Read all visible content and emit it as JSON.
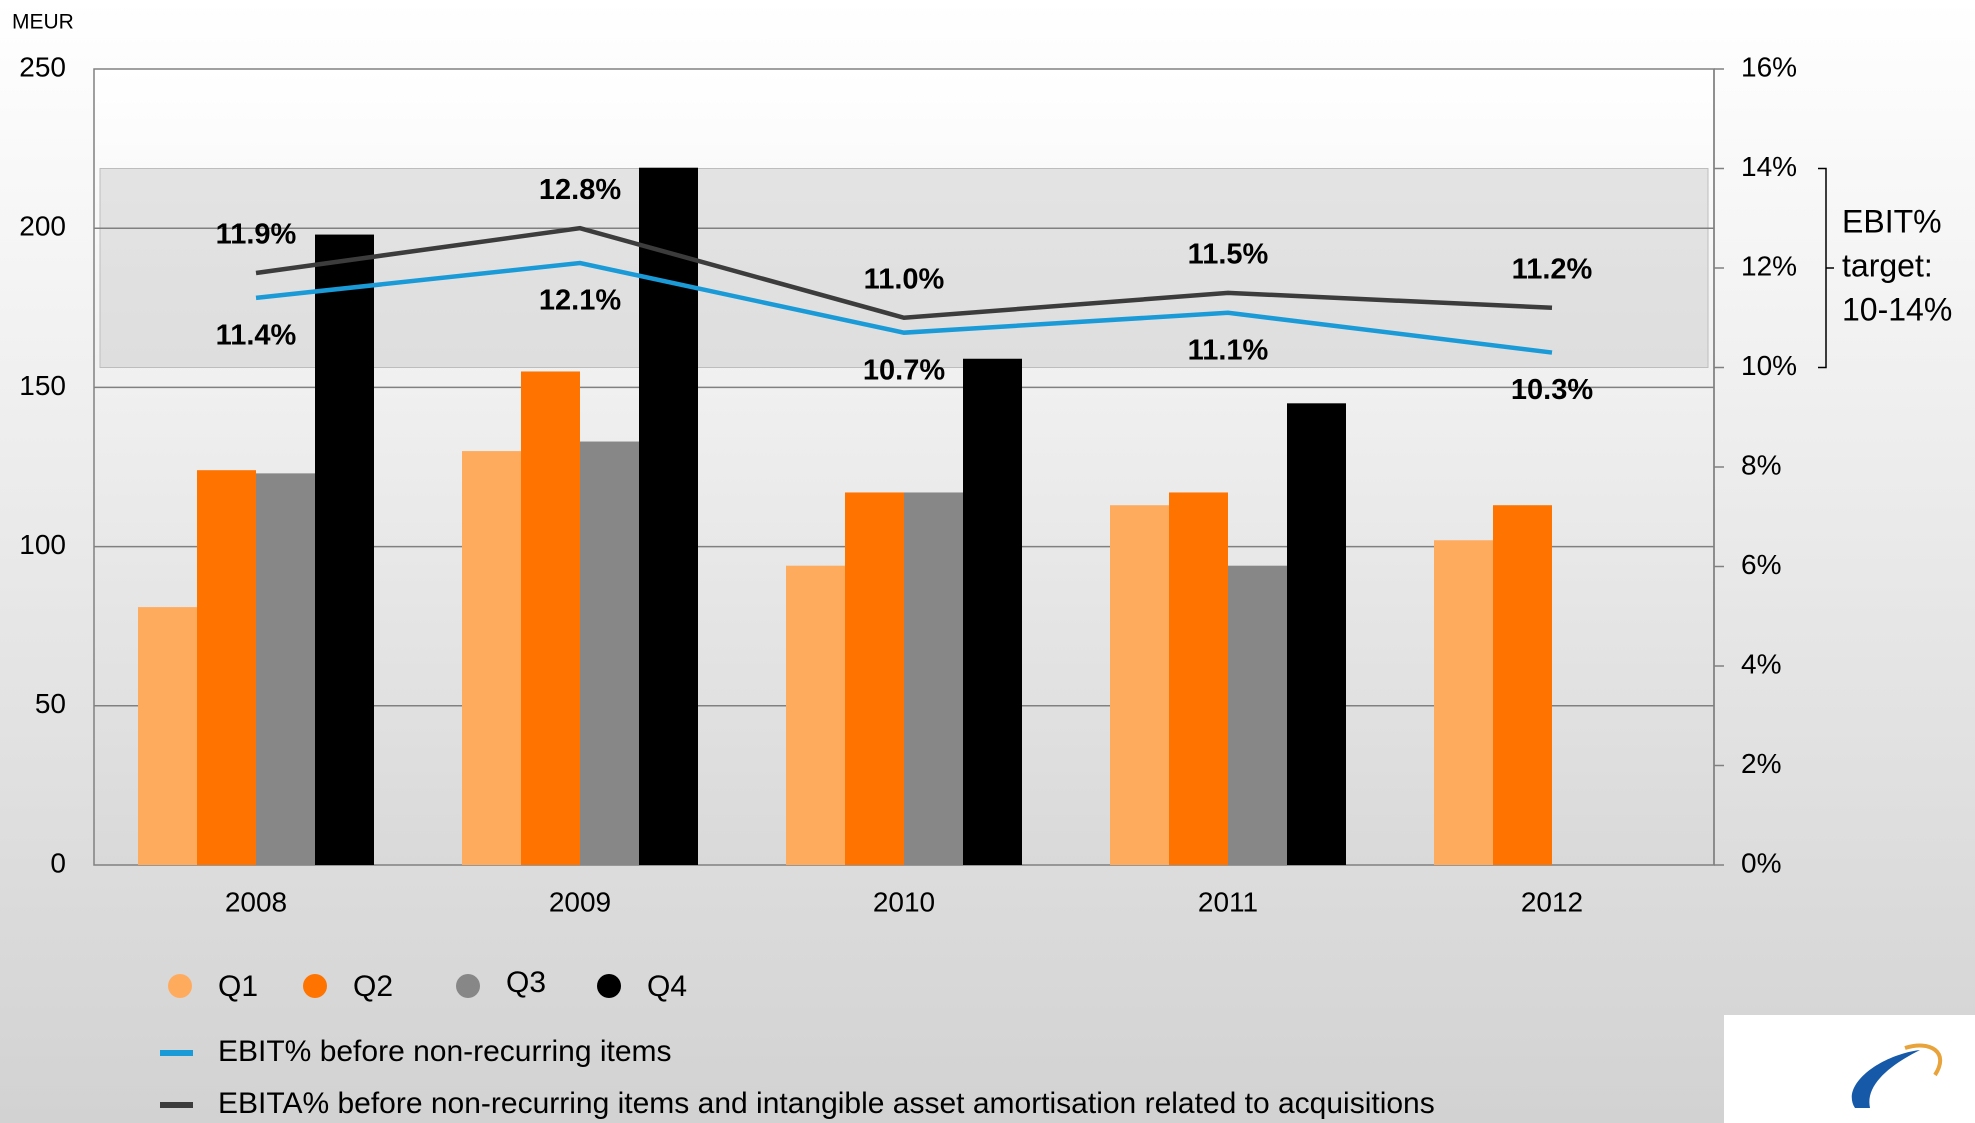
{
  "chart_data": {
    "type": "bar",
    "y_label": "MEUR",
    "categories": [
      "2008",
      "2009",
      "2010",
      "2011",
      "2012"
    ],
    "series": [
      {
        "name": "Q1",
        "color": "#ffab5e",
        "values": [
          81,
          130,
          94,
          113,
          102
        ]
      },
      {
        "name": "Q2",
        "color": "#ff7300",
        "values": [
          124,
          155,
          117,
          117,
          113
        ]
      },
      {
        "name": "Q3",
        "color": "#878787",
        "values": [
          123,
          133,
          117,
          94,
          null
        ]
      },
      {
        "name": "Q4",
        "color": "#000000",
        "values": [
          198,
          219,
          159,
          145,
          null
        ]
      },
      {
        "name": "EBIT% before non-recurring items",
        "color": "#1a9bd7",
        "type": "line",
        "axis": "y2",
        "values": [
          11.4,
          12.1,
          10.7,
          11.1,
          10.3
        ],
        "value_labels": [
          "11.4%",
          "12.1%",
          "10.7%",
          "11.1%",
          "10.3%"
        ]
      },
      {
        "name": "EBITA% before non-recurring items and intangible asset amortisation related to acquisitions",
        "color": "#3c3c3c",
        "type": "line",
        "axis": "y2",
        "values": [
          11.9,
          12.8,
          11.0,
          11.5,
          11.2
        ],
        "value_labels": [
          "11.9%",
          "12.8%",
          "11.0%",
          "11.5%",
          "11.2%"
        ]
      }
    ],
    "ylim": [
      0,
      250
    ],
    "yticks": [
      0,
      50,
      100,
      150,
      200,
      250
    ],
    "y2lim": [
      0,
      16
    ],
    "y2ticks": [
      {
        "value": 0,
        "label": "0%"
      },
      {
        "value": 2,
        "label": "2%"
      },
      {
        "value": 4,
        "label": "4%"
      },
      {
        "value": 6,
        "label": "6%"
      },
      {
        "value": 8,
        "label": "8%"
      },
      {
        "value": 10,
        "label": "10%"
      },
      {
        "value": 12,
        "label": "12%"
      },
      {
        "value": 14,
        "label": "14%"
      },
      {
        "value": 16,
        "label": "16%"
      }
    ],
    "target_band": [
      10,
      14
    ],
    "annotation": [
      "EBIT%",
      "target:",
      "10-14%"
    ],
    "grid": true
  }
}
